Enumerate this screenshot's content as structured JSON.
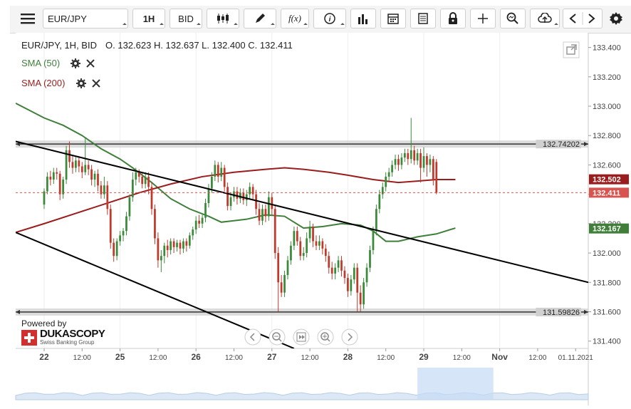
{
  "toolbar": {
    "menu_icon": "hamburger-menu-icon",
    "symbol": "EUR/JPY",
    "timeframe": "1H",
    "price_side": "BID",
    "tools": [
      "candlestick-icon",
      "draw-pen-icon",
      "function-icon",
      "info-icon",
      "volume-bars-icon",
      "calendar-icon",
      "news-icon",
      "lock-icon",
      "crosshair-icon",
      "zoom-search-icon",
      "cloud-upload-icon",
      "prev-arrow-icon",
      "next-arrow-icon",
      "settings-gear-icon"
    ],
    "function_label": "f(x)"
  },
  "info": {
    "header": "EUR/JPY, 1H, BID",
    "ohlc": "O. 132.623 H. 132.637 L. 132.400 C. 132.411",
    "sma50": "SMA (50)",
    "sma200": "SMA (200)"
  },
  "branding": {
    "powered_by": "Powered by",
    "brand": "DUKASCOPY",
    "tagline": "Swiss Banking Group"
  },
  "colors": {
    "bull": "#3a8a3a",
    "bear": "#c0392b",
    "sma50": "#3f7f3a",
    "sma200": "#9b1c1c",
    "trendline": "#000000",
    "hline": "#555555",
    "last_price": "#d9534f"
  },
  "chart_data": {
    "type": "candlestick",
    "symbol": "EUR/JPY",
    "timeframe": "1H",
    "y_ticks": [
      "133.400",
      "133.200",
      "133.000",
      "132.800",
      "132.600",
      "132.400",
      "132.200",
      "132.000",
      "131.800",
      "131.600",
      "131.400"
    ],
    "ylim": [
      131.35,
      133.5
    ],
    "x_ticks": [
      {
        "label": "22",
        "x": 0,
        "bold": true
      },
      {
        "label": "12:00",
        "x": 12,
        "bold": false
      },
      {
        "label": "25",
        "x": 24,
        "bold": true
      },
      {
        "label": "12:00",
        "x": 36,
        "bold": false
      },
      {
        "label": "26",
        "x": 48,
        "bold": true
      },
      {
        "label": "12:00",
        "x": 60,
        "bold": false
      },
      {
        "label": "27",
        "x": 72,
        "bold": true
      },
      {
        "label": "12:00",
        "x": 84,
        "bold": false
      },
      {
        "label": "28",
        "x": 96,
        "bold": true
      },
      {
        "label": "12:00",
        "x": 108,
        "bold": false
      },
      {
        "label": "29",
        "x": 120,
        "bold": true
      },
      {
        "label": "12:00",
        "x": 132,
        "bold": false
      },
      {
        "label": "Nov",
        "x": 144,
        "bold": true
      },
      {
        "label": "12:00",
        "x": 156,
        "bold": false
      },
      {
        "label": "01.11.2021",
        "x": 168,
        "bold": false
      }
    ],
    "xlim": [
      -9,
      172
    ],
    "horizontal_lines": [
      {
        "label": "132.74202",
        "value": 132.742
      },
      {
        "label": "131.59826",
        "value": 131.598
      }
    ],
    "price_labels": [
      {
        "label": "132.502",
        "value": 132.502,
        "color": "#9b1c1c"
      },
      {
        "label": "132.411",
        "value": 132.411,
        "color": "#d9534f"
      },
      {
        "label": "132.167",
        "value": 132.167,
        "color": "#3f7f3a"
      }
    ],
    "last_price": 132.411,
    "trendlines": [
      {
        "from": [
          -9,
          132.76
        ],
        "to": [
          172,
          131.8
        ]
      },
      {
        "from": [
          -9,
          132.14
        ],
        "to": [
          79,
          131.35
        ]
      }
    ],
    "sma50": [
      [
        -9,
        133.02
      ],
      [
        0,
        132.92
      ],
      [
        6,
        132.87
      ],
      [
        12,
        132.8
      ],
      [
        18,
        132.71
      ],
      [
        24,
        132.64
      ],
      [
        28,
        132.58
      ],
      [
        34,
        132.48
      ],
      [
        40,
        132.37
      ],
      [
        46,
        132.3
      ],
      [
        52,
        132.25
      ],
      [
        56,
        132.21
      ],
      [
        60,
        132.22
      ],
      [
        64,
        132.23
      ],
      [
        70,
        132.26
      ],
      [
        76,
        132.25
      ],
      [
        82,
        132.17
      ],
      [
        88,
        132.18
      ],
      [
        94,
        132.2
      ],
      [
        100,
        132.19
      ],
      [
        104,
        132.15
      ],
      [
        108,
        132.08
      ],
      [
        112,
        132.08
      ],
      [
        118,
        132.11
      ],
      [
        124,
        132.13
      ],
      [
        130,
        132.17
      ]
    ],
    "sma200": [
      [
        -9,
        132.14
      ],
      [
        0,
        132.2
      ],
      [
        10,
        132.27
      ],
      [
        20,
        132.34
      ],
      [
        30,
        132.41
      ],
      [
        40,
        132.47
      ],
      [
        50,
        132.52
      ],
      [
        60,
        132.55
      ],
      [
        70,
        132.57
      ],
      [
        76,
        132.58
      ],
      [
        82,
        132.57
      ],
      [
        90,
        132.55
      ],
      [
        96,
        132.53
      ],
      [
        104,
        132.5
      ],
      [
        112,
        132.48
      ],
      [
        118,
        132.49
      ],
      [
        124,
        132.5
      ],
      [
        130,
        132.5
      ]
    ],
    "candles": [
      [
        132.33,
        132.42,
        132.3,
        132.44
      ],
      [
        132.42,
        132.52,
        132.4,
        132.55
      ],
      [
        132.52,
        132.5,
        132.46,
        132.56
      ],
      [
        132.5,
        132.55,
        132.47,
        132.58
      ],
      [
        132.55,
        132.54,
        132.5,
        132.58
      ],
      [
        132.54,
        132.4,
        132.36,
        132.56
      ],
      [
        132.4,
        132.5,
        132.37,
        132.52
      ],
      [
        132.5,
        132.7,
        132.47,
        132.73
      ],
      [
        132.7,
        132.62,
        132.58,
        132.76
      ],
      [
        132.62,
        132.58,
        132.54,
        132.66
      ],
      [
        132.58,
        132.63,
        132.55,
        132.66
      ],
      [
        132.63,
        132.59,
        132.55,
        132.66
      ],
      [
        132.59,
        132.55,
        132.51,
        132.62
      ],
      [
        132.55,
        132.6,
        132.53,
        132.78
      ],
      [
        132.6,
        132.57,
        132.53,
        132.63
      ],
      [
        132.57,
        132.5,
        132.46,
        132.6
      ],
      [
        132.5,
        132.54,
        132.45,
        132.56
      ],
      [
        132.54,
        132.46,
        132.42,
        132.57
      ],
      [
        132.46,
        132.4,
        132.37,
        132.49
      ],
      [
        132.4,
        132.46,
        132.37,
        132.52
      ],
      [
        132.46,
        132.3,
        132.26,
        132.49
      ],
      [
        132.3,
        132.07,
        132.03,
        132.33
      ],
      [
        132.07,
        131.98,
        131.94,
        132.1
      ],
      [
        131.98,
        132.08,
        131.95,
        132.1
      ],
      [
        132.08,
        132.12,
        132.05,
        132.15
      ],
      [
        132.12,
        132.15,
        132.08,
        132.17
      ],
      [
        132.15,
        132.25,
        132.12,
        132.28
      ],
      [
        132.25,
        132.38,
        132.22,
        132.4
      ],
      [
        132.38,
        132.5,
        132.35,
        132.55
      ],
      [
        132.5,
        132.55,
        132.46,
        132.58
      ],
      [
        132.55,
        132.52,
        132.48,
        132.57
      ],
      [
        132.52,
        132.47,
        132.44,
        132.55
      ],
      [
        132.47,
        132.52,
        132.44,
        132.55
      ],
      [
        132.52,
        132.45,
        132.4,
        132.55
      ],
      [
        132.45,
        132.3,
        132.26,
        132.48
      ],
      [
        132.3,
        132.1,
        132.06,
        132.33
      ],
      [
        132.1,
        131.95,
        131.9,
        132.14
      ],
      [
        131.95,
        131.98,
        131.87,
        132.02
      ],
      [
        131.98,
        132.05,
        131.93,
        132.07
      ],
      [
        132.05,
        132.02,
        131.97,
        132.09
      ],
      [
        132.02,
        132.08,
        131.99,
        132.1
      ],
      [
        132.08,
        132.04,
        132.0,
        132.1
      ],
      [
        132.04,
        132.07,
        132.01,
        132.09
      ],
      [
        132.07,
        132.03,
        131.99,
        132.09
      ],
      [
        132.03,
        132.08,
        132.0,
        132.1
      ],
      [
        132.08,
        132.05,
        132.01,
        132.1
      ],
      [
        132.05,
        132.12,
        132.03,
        132.14
      ],
      [
        132.12,
        132.16,
        132.09,
        132.18
      ],
      [
        132.16,
        132.22,
        132.13,
        132.25
      ],
      [
        132.22,
        132.2,
        132.17,
        132.26
      ],
      [
        132.2,
        132.24,
        132.17,
        132.26
      ],
      [
        132.24,
        132.34,
        132.21,
        132.37
      ],
      [
        132.34,
        132.44,
        132.31,
        132.47
      ],
      [
        132.44,
        132.52,
        132.41,
        132.55
      ],
      [
        132.52,
        132.6,
        132.49,
        132.63
      ],
      [
        132.6,
        132.52,
        132.48,
        132.62
      ],
      [
        132.52,
        132.58,
        132.49,
        132.62
      ],
      [
        132.58,
        132.45,
        132.42,
        132.6
      ],
      [
        132.45,
        132.32,
        132.29,
        132.48
      ],
      [
        132.32,
        132.38,
        132.29,
        132.41
      ],
      [
        132.38,
        132.42,
        132.35,
        132.45
      ],
      [
        132.42,
        132.37,
        132.33,
        132.45
      ],
      [
        132.37,
        132.41,
        132.34,
        132.44
      ],
      [
        132.41,
        132.36,
        132.33,
        132.44
      ],
      [
        132.36,
        132.4,
        132.32,
        132.43
      ],
      [
        132.4,
        132.45,
        132.37,
        132.48
      ],
      [
        132.45,
        132.4,
        132.36,
        132.47
      ],
      [
        132.4,
        132.3,
        132.26,
        132.43
      ],
      [
        132.3,
        132.22,
        132.19,
        132.34
      ],
      [
        132.22,
        132.3,
        132.19,
        132.33
      ],
      [
        132.3,
        132.25,
        132.21,
        132.33
      ],
      [
        132.25,
        132.38,
        132.22,
        132.42
      ],
      [
        132.38,
        132.3,
        132.26,
        132.41
      ],
      [
        132.3,
        132.0,
        131.96,
        132.33
      ],
      [
        132.0,
        131.8,
        131.6,
        132.04
      ],
      [
        131.8,
        131.73,
        131.7,
        131.85
      ],
      [
        131.73,
        131.85,
        131.7,
        131.88
      ],
      [
        131.85,
        131.95,
        131.82,
        131.98
      ],
      [
        131.95,
        132.05,
        131.92,
        132.08
      ],
      [
        132.05,
        132.15,
        132.02,
        132.18
      ],
      [
        132.15,
        132.08,
        132.05,
        132.18
      ],
      [
        132.08,
        131.98,
        131.95,
        132.11
      ],
      [
        131.98,
        132.0,
        131.95,
        132.04
      ],
      [
        132.0,
        132.1,
        131.97,
        132.14
      ],
      [
        132.1,
        132.18,
        132.07,
        132.22
      ],
      [
        132.18,
        132.08,
        132.04,
        132.2
      ],
      [
        132.08,
        132.05,
        132.02,
        132.12
      ],
      [
        132.05,
        132.08,
        132.02,
        132.12
      ],
      [
        132.08,
        132.03,
        131.99,
        132.1
      ],
      [
        132.03,
        131.98,
        131.94,
        132.06
      ],
      [
        131.98,
        131.9,
        131.86,
        132.01
      ],
      [
        131.9,
        131.86,
        131.82,
        131.94
      ],
      [
        131.86,
        131.9,
        131.82,
        131.93
      ],
      [
        131.9,
        131.95,
        131.87,
        131.98
      ],
      [
        131.95,
        131.88,
        131.84,
        131.98
      ],
      [
        131.88,
        131.83,
        131.79,
        131.91
      ],
      [
        131.83,
        131.74,
        131.7,
        131.86
      ],
      [
        131.74,
        131.82,
        131.71,
        131.85
      ],
      [
        131.82,
        131.9,
        131.79,
        131.93
      ],
      [
        131.9,
        131.73,
        131.6,
        131.93
      ],
      [
        131.73,
        131.65,
        131.6,
        131.78
      ],
      [
        131.65,
        131.8,
        131.62,
        131.83
      ],
      [
        131.8,
        131.9,
        131.77,
        131.93
      ],
      [
        131.9,
        132.02,
        131.87,
        132.05
      ],
      [
        132.02,
        132.15,
        131.99,
        132.18
      ],
      [
        132.15,
        132.3,
        132.12,
        132.33
      ],
      [
        132.3,
        132.4,
        132.27,
        132.43
      ],
      [
        132.4,
        132.45,
        132.37,
        132.48
      ],
      [
        132.45,
        132.52,
        132.42,
        132.55
      ],
      [
        132.52,
        132.55,
        132.49,
        132.58
      ],
      [
        132.55,
        132.6,
        132.52,
        132.63
      ],
      [
        132.6,
        132.64,
        132.57,
        132.67
      ],
      [
        132.64,
        132.6,
        132.56,
        132.67
      ],
      [
        132.6,
        132.65,
        132.57,
        132.68
      ],
      [
        132.65,
        132.68,
        132.62,
        132.71
      ],
      [
        132.68,
        132.64,
        132.6,
        132.71
      ],
      [
        132.64,
        132.7,
        132.61,
        132.92
      ],
      [
        132.7,
        132.63,
        132.6,
        132.73
      ],
      [
        132.63,
        132.68,
        132.6,
        132.71
      ],
      [
        132.68,
        132.58,
        132.48,
        132.71
      ],
      [
        132.58,
        132.66,
        132.55,
        132.72
      ],
      [
        132.66,
        132.6,
        132.52,
        132.68
      ],
      [
        132.6,
        132.64,
        132.55,
        132.67
      ],
      [
        132.64,
        132.5,
        132.46,
        132.66
      ],
      [
        132.62,
        132.41,
        132.4,
        132.64
      ]
    ]
  }
}
